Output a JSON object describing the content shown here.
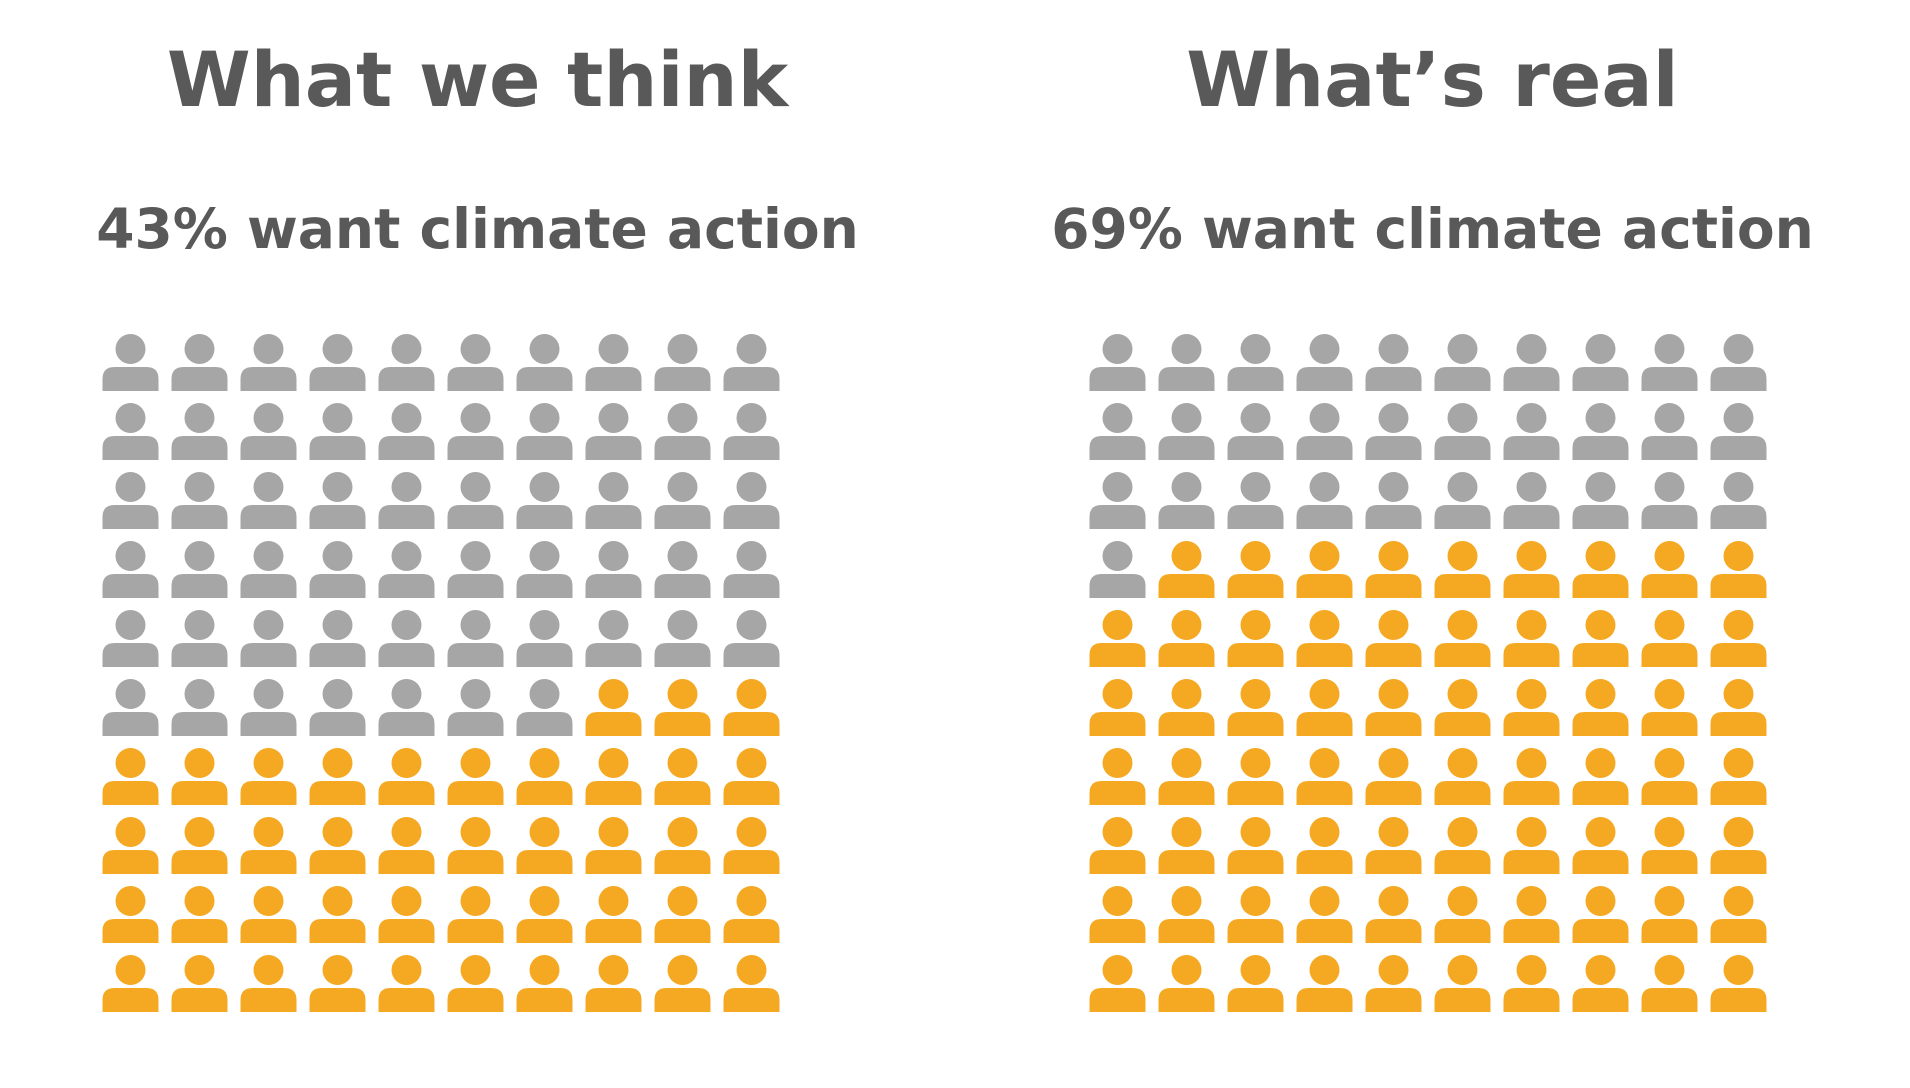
{
  "colors": {
    "highlight": "#F5A923",
    "base": "#A6A6A6",
    "text": "#595959"
  },
  "icon": "person-icon",
  "chart_data": [
    {
      "type": "waffle",
      "title": "What we think",
      "subtitle": "43% want climate action",
      "total": 100,
      "columns": 10,
      "rows": 10,
      "highlighted": 43
    },
    {
      "type": "waffle",
      "title": "What’s real",
      "subtitle": "69% want climate action",
      "total": 100,
      "columns": 10,
      "rows": 10,
      "highlighted": 69
    }
  ]
}
